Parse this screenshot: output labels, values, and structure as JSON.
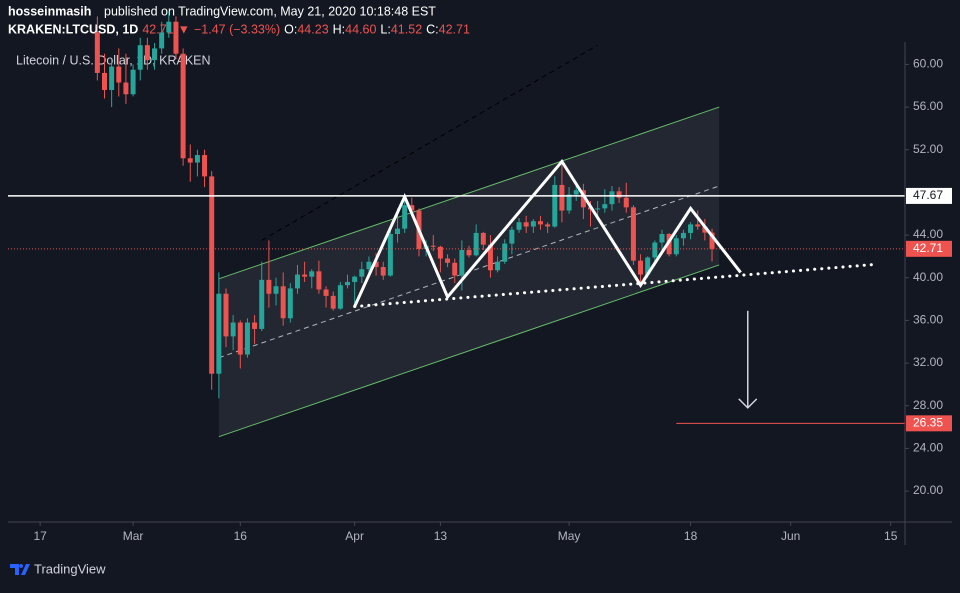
{
  "header": {
    "author": "hosseinmasih",
    "published": "published on TradingView.com, May 21, 2020 10:18:48 EST",
    "symbol": "KRAKEN:LTCUSD, 1D",
    "last": "42.71",
    "arrow": "▼",
    "change": "−1.47 (−3.33%)",
    "quote": [
      {
        "key": "O:",
        "value": "44.23"
      },
      {
        "key": "H:",
        "value": "44.60"
      },
      {
        "key": "L:",
        "value": "41.52"
      },
      {
        "key": "C:",
        "value": "42.71"
      }
    ],
    "up_color": "#26a69a",
    "down_color": "#ef5350"
  },
  "footer": {
    "brand": "TradingView"
  },
  "chart_data": {
    "type": "candlestick",
    "title": "Litecoin / U.S. Dollar, 1D, KRAKEN",
    "up_color": "#26a69a",
    "down_color": "#ef5350",
    "grid": false,
    "ylim": [
      17.1,
      62.1
    ],
    "yticks": [
      {
        "value": 20,
        "label": "20.00"
      },
      {
        "value": 24,
        "label": "24.00"
      },
      {
        "value": 28,
        "label": "28.00"
      },
      {
        "value": 32,
        "label": "32.00"
      },
      {
        "value": 36,
        "label": "36.00"
      },
      {
        "value": 40,
        "label": "40.00"
      },
      {
        "value": 44,
        "label": "44.00"
      },
      {
        "value": 52,
        "label": "52.00"
      },
      {
        "value": 56,
        "label": "56.00"
      },
      {
        "value": 60,
        "label": "60.00"
      }
    ],
    "xlim": [
      "2020-02-12T12:00",
      "2020-06-17T00:00"
    ],
    "xticks": [
      {
        "value": "2020-02-17",
        "label": "17"
      },
      {
        "value": "2020-03-01",
        "label": "Mar"
      },
      {
        "value": "2020-03-16",
        "label": "16"
      },
      {
        "value": "2020-04-01",
        "label": "Apr"
      },
      {
        "value": "2020-04-13",
        "label": "13"
      },
      {
        "value": "2020-05-01",
        "label": "May"
      },
      {
        "value": "2020-05-18",
        "label": "18"
      },
      {
        "value": "2020-06-01",
        "label": "Jun"
      },
      {
        "value": "2020-06-15",
        "label": "15"
      }
    ],
    "x": [
      "2020-02-25",
      "2020-02-26",
      "2020-02-27",
      "2020-02-28",
      "2020-02-29",
      "2020-03-01",
      "2020-03-02",
      "2020-03-03",
      "2020-03-04",
      "2020-03-05",
      "2020-03-06",
      "2020-03-07",
      "2020-03-08",
      "2020-03-09",
      "2020-03-10",
      "2020-03-11",
      "2020-03-12",
      "2020-03-13",
      "2020-03-14",
      "2020-03-15",
      "2020-03-16",
      "2020-03-17",
      "2020-03-18",
      "2020-03-19",
      "2020-03-20",
      "2020-03-21",
      "2020-03-22",
      "2020-03-23",
      "2020-03-24",
      "2020-03-25",
      "2020-03-26",
      "2020-03-27",
      "2020-03-28",
      "2020-03-29",
      "2020-03-30",
      "2020-03-31",
      "2020-04-01",
      "2020-04-02",
      "2020-04-03",
      "2020-04-04",
      "2020-04-05",
      "2020-04-06",
      "2020-04-07",
      "2020-04-08",
      "2020-04-09",
      "2020-04-10",
      "2020-04-11",
      "2020-04-12",
      "2020-04-13",
      "2020-04-14",
      "2020-04-15",
      "2020-04-16",
      "2020-04-17",
      "2020-04-18",
      "2020-04-19",
      "2020-04-20",
      "2020-04-21",
      "2020-04-22",
      "2020-04-23",
      "2020-04-24",
      "2020-04-25",
      "2020-04-26",
      "2020-04-27",
      "2020-04-28",
      "2020-04-29",
      "2020-04-30",
      "2020-05-01",
      "2020-05-02",
      "2020-05-03",
      "2020-05-04",
      "2020-05-05",
      "2020-05-06",
      "2020-05-07",
      "2020-05-08",
      "2020-05-09",
      "2020-05-10",
      "2020-05-11",
      "2020-05-12",
      "2020-05-13",
      "2020-05-14",
      "2020-05-15",
      "2020-05-16",
      "2020-05-17",
      "2020-05-18",
      "2020-05-19",
      "2020-05-20",
      "2020-05-21"
    ],
    "candles": [
      [
        63,
        64.5,
        58.5,
        59.2
      ],
      [
        59.2,
        61,
        56.8,
        57.6
      ],
      [
        57.6,
        60.5,
        56,
        59.8
      ],
      [
        59.8,
        61.5,
        57,
        58.3
      ],
      [
        58.3,
        61,
        56.3,
        57.2
      ],
      [
        57.2,
        60,
        57,
        59.5
      ],
      [
        59.5,
        62.5,
        58.5,
        61.8
      ],
      [
        61.8,
        62.5,
        59.5,
        60.4
      ],
      [
        60.4,
        62,
        59.5,
        61.5
      ],
      [
        61.5,
        64,
        61,
        63
      ],
      [
        63,
        65,
        62.5,
        64
      ],
      [
        64,
        64.5,
        60.5,
        61
      ],
      [
        61,
        61.5,
        50.5,
        51.2
      ],
      [
        51.2,
        52.5,
        49,
        50.8
      ],
      [
        50.8,
        52,
        49.5,
        51.5
      ],
      [
        51.5,
        52,
        48.5,
        49.5
      ],
      [
        49.5,
        50,
        29.5,
        31
      ],
      [
        31,
        40.5,
        28.7,
        38.5
      ],
      [
        38.5,
        39,
        33.5,
        34.5
      ],
      [
        34.5,
        36.5,
        33.2,
        35.8
      ],
      [
        35.8,
        36,
        31.5,
        32.8
      ],
      [
        32.8,
        36.2,
        32.5,
        35.8
      ],
      [
        35.8,
        36.5,
        33.8,
        35.2
      ],
      [
        35.2,
        41.5,
        35,
        39.8
      ],
      [
        39.8,
        43.5,
        37.2,
        38.5
      ],
      [
        38.5,
        40,
        37.4,
        39.2
      ],
      [
        39.2,
        40.5,
        35.5,
        36.2
      ],
      [
        36.2,
        39.5,
        35.8,
        39
      ],
      [
        39,
        41.2,
        38.5,
        40.3
      ],
      [
        40.3,
        41.5,
        39.6,
        40.1
      ],
      [
        40.1,
        40.8,
        39,
        40.6
      ],
      [
        40.6,
        41.6,
        38.5,
        38.9
      ],
      [
        38.9,
        39.2,
        37.2,
        38.3
      ],
      [
        38.3,
        38.7,
        36.9,
        37.1
      ],
      [
        37.1,
        39.6,
        37,
        39.3
      ],
      [
        39.3,
        40.3,
        39,
        39.6
      ],
      [
        39.6,
        40.2,
        37.5,
        40.1
      ],
      [
        40.1,
        41.5,
        39.5,
        40.8
      ],
      [
        40.8,
        42,
        40.3,
        41.5
      ],
      [
        41.5,
        42.3,
        40.2,
        41
      ],
      [
        41,
        41.5,
        39.8,
        40.2
      ],
      [
        40.2,
        44.5,
        40.1,
        44.1
      ],
      [
        44.1,
        46.5,
        43.3,
        44.6
      ],
      [
        44.6,
        47.5,
        44.2,
        46.8
      ],
      [
        46.8,
        47.5,
        45.8,
        46.3
      ],
      [
        46.3,
        46.5,
        42,
        42.7
      ],
      [
        42.7,
        43.5,
        42,
        43
      ],
      [
        43,
        44,
        42.5,
        42.9
      ],
      [
        42.9,
        43,
        40.5,
        41.8
      ],
      [
        41.8,
        42.2,
        41,
        41.4
      ],
      [
        41.4,
        41.8,
        39.5,
        40.2
      ],
      [
        40.2,
        43.5,
        38.8,
        42.6
      ],
      [
        42.6,
        43,
        41.9,
        42.1
      ],
      [
        42.1,
        45,
        42,
        44.2
      ],
      [
        44.2,
        44.3,
        42.6,
        43.1
      ],
      [
        43.1,
        44,
        40,
        40.7
      ],
      [
        40.7,
        42,
        40.5,
        41.5
      ],
      [
        41.5,
        43.6,
        41.3,
        43.2
      ],
      [
        43.2,
        44.8,
        42.2,
        44.5
      ],
      [
        44.5,
        45.6,
        44.2,
        45.2
      ],
      [
        45.2,
        45.8,
        44.2,
        44.8
      ],
      [
        44.8,
        45.5,
        44.2,
        45.3
      ],
      [
        45.3,
        45.8,
        44.5,
        45
      ],
      [
        45,
        45.2,
        44.2,
        44.8
      ],
      [
        44.8,
        49.5,
        44.7,
        48.7
      ],
      [
        48.7,
        51,
        45.2,
        46.3
      ],
      [
        46.3,
        48.5,
        46,
        47.8
      ],
      [
        47.8,
        48.8,
        47.2,
        48.2
      ],
      [
        48.2,
        48.8,
        45.5,
        46.6
      ],
      [
        46.6,
        47.2,
        44.8,
        46.4
      ],
      [
        46.4,
        47.2,
        45.8,
        46.5
      ],
      [
        46.5,
        48.3,
        46.1,
        46.9
      ],
      [
        46.9,
        48.6,
        46.3,
        48.1
      ],
      [
        48.1,
        48.5,
        47,
        47.5
      ],
      [
        47.5,
        48.9,
        46.1,
        46.6
      ],
      [
        46.6,
        46.8,
        41.2,
        41.6
      ],
      [
        41.6,
        42.2,
        39.2,
        40.3
      ],
      [
        40.3,
        42,
        40,
        41.9
      ],
      [
        41.9,
        43.5,
        41.5,
        43.3
      ],
      [
        43.3,
        44.5,
        42.6,
        44.1
      ],
      [
        44.1,
        44.2,
        42,
        42.2
      ],
      [
        42.2,
        44,
        42,
        43.7
      ],
      [
        43.7,
        44.5,
        43,
        44.2
      ],
      [
        44.2,
        45.2,
        43.6,
        45
      ],
      [
        45,
        46.3,
        44.5,
        44.8
      ],
      [
        44.8,
        45.5,
        43.5,
        44.23
      ],
      [
        44.23,
        44.6,
        41.52,
        42.71
      ]
    ],
    "hlines": [
      {
        "value": 47.67,
        "color": "#ffffff"
      }
    ],
    "targets": [
      {
        "value": 26.35,
        "start": "2020-05-16",
        "color": "#ef5350"
      }
    ],
    "channel": {
      "color": "#66bb6a",
      "upper": [
        [
          "2020-03-13",
          39.9
        ],
        [
          "2020-05-22",
          56
        ]
      ],
      "lower": [
        [
          "2020-03-13",
          25.1
        ],
        [
          "2020-05-22",
          41.2
        ]
      ],
      "mid": [
        [
          "2020-03-13",
          32.5
        ],
        [
          "2020-05-22",
          48.6
        ]
      ]
    },
    "pattern": [
      [
        "2020-04-01",
        37.3
      ],
      [
        "2020-04-08",
        47.6
      ],
      [
        "2020-04-14",
        38.2
      ],
      [
        "2020-04-30",
        50.9
      ],
      [
        "2020-05-11",
        39.3
      ],
      [
        "2020-05-18",
        46.5
      ],
      [
        "2020-05-25",
        40.5
      ]
    ],
    "trendline": [
      [
        "2020-04-01",
        37.3
      ],
      [
        "2020-06-13",
        41.26
      ]
    ],
    "ray": [
      [
        "2020-03-19",
        43.5
      ],
      [
        "2020-05-05",
        61.8
      ]
    ],
    "arrow": [
      [
        "2020-05-26",
        36.9
      ],
      [
        "2020-05-26",
        27.8
      ]
    ]
  }
}
